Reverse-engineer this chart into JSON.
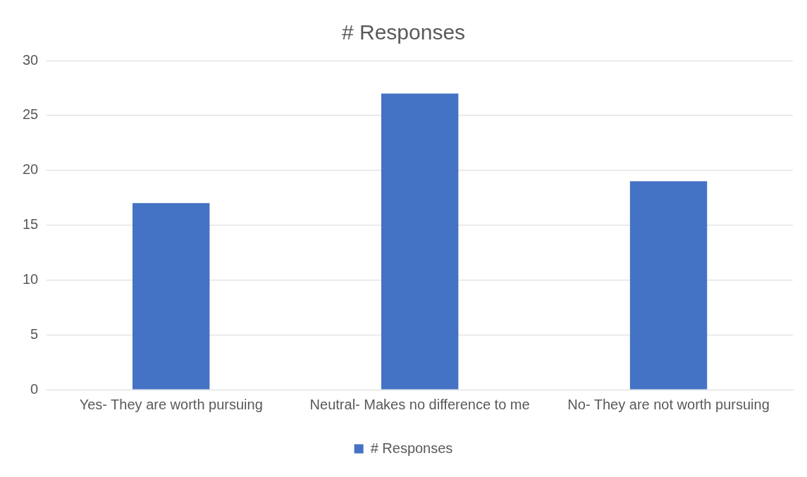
{
  "chart_data": {
    "type": "bar",
    "title": "# Responses",
    "categories": [
      "Yes- They are worth pursuing",
      "Neutral- Makes no difference to me",
      "No- They are not worth pursuing"
    ],
    "series": [
      {
        "name": "# Responses",
        "color": "#4472c4",
        "values": [
          17,
          27,
          19
        ]
      }
    ],
    "ylim": [
      0,
      30
    ],
    "yticks": [
      0,
      5,
      10,
      15,
      20,
      25,
      30
    ],
    "grid": "y",
    "legend": "bottom"
  }
}
